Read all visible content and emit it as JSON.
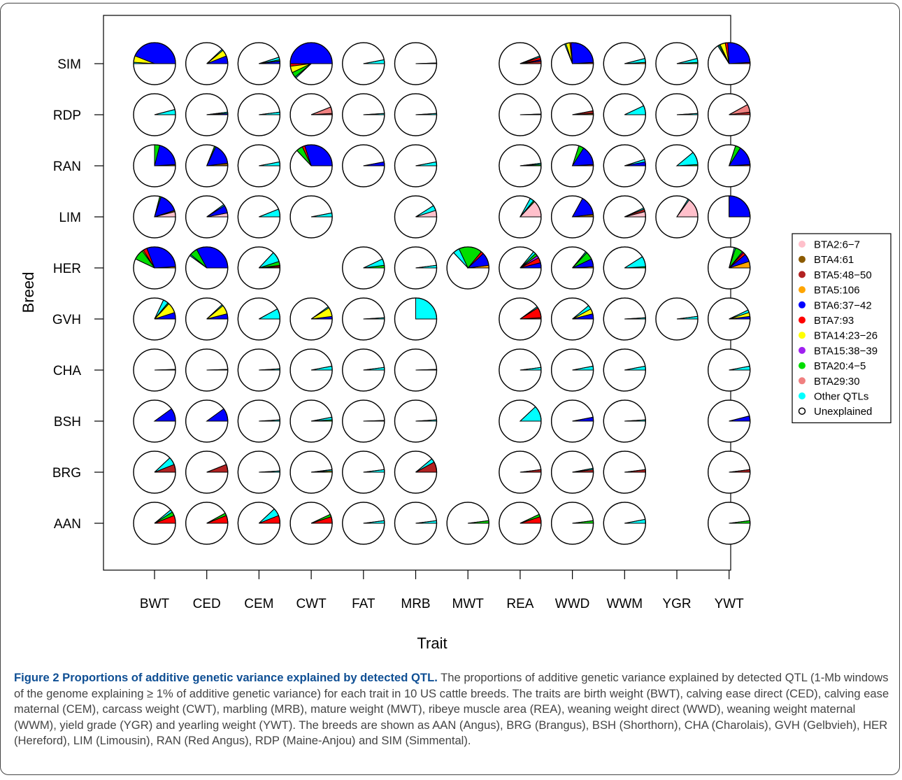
{
  "caption": {
    "title": "Figure 2 Proportions of additive genetic variance explained by detected QTL.",
    "text": " The proportions of additive genetic variance explained by detected QTL (1-Mb windows of the genome explaining ≥ 1% of additive genetic variance) for each trait in 10 US cattle breeds. The traits are birth weight (BWT), calving ease direct (CED), calving ease maternal (CEM), carcass weight (CWT), marbling (MRB), mature weight (MWT), ribeye muscle area (REA), weaning weight direct (WWD), weaning weight maternal (WWM), yield grade (YGR) and yearling weight (YWT). The breeds are shown as AAN (Angus), BRG (Brangus), BSH (Shorthorn), CHA (Charolais), GVH (Gelbvieh), HER (Hereford), LIM (Limousin), RAN (Red Angus), RDP (Maine-Anjou) and SIM (Simmental)."
  },
  "chart_data": {
    "type": "pie",
    "xlabel": "Trait",
    "ylabel": "Breed",
    "traits": [
      "BWT",
      "CED",
      "CEM",
      "CWT",
      "FAT",
      "MRB",
      "MWT",
      "REA",
      "WWD",
      "WWM",
      "YGR",
      "YWT"
    ],
    "breeds": [
      "SIM",
      "RDP",
      "RAN",
      "LIM",
      "HER",
      "GVH",
      "CHA",
      "BSH",
      "BRG",
      "AAN"
    ],
    "legend": {
      "position": "right",
      "entries": [
        {
          "key": "bta2",
          "label": "BTA2:6−7",
          "color": "#ffc0cb"
        },
        {
          "key": "bta4",
          "label": "BTA4:61",
          "color": "#8b5a00"
        },
        {
          "key": "bta5a",
          "label": "BTA5:48−50",
          "color": "#b22222"
        },
        {
          "key": "bta5b",
          "label": "BTA5:106",
          "color": "#ffa500"
        },
        {
          "key": "bta6",
          "label": "BTA6:37−42",
          "color": "#0000ff"
        },
        {
          "key": "bta7",
          "label": "BTA7:93",
          "color": "#ff0000"
        },
        {
          "key": "bta14",
          "label": "BTA14:23−26",
          "color": "#ffff00"
        },
        {
          "key": "bta15",
          "label": "BTA15:38−39",
          "color": "#a020f0"
        },
        {
          "key": "bta20",
          "label": "BTA20:4−5",
          "color": "#00dd00"
        },
        {
          "key": "bta29",
          "label": "BTA29:30",
          "color": "#f08080"
        },
        {
          "key": "other",
          "label": "Other QTLs",
          "color": "#00ffff"
        },
        {
          "key": "unexplained",
          "label": "Unexplained",
          "color": "#ffffff"
        }
      ]
    },
    "cells": {
      "SIM": {
        "BWT": {
          "bta6": 0.44,
          "bta14": 0.05,
          "other": 0.01
        },
        "CED": {
          "bta6": 0.06,
          "bta14": 0.05,
          "other": 0.01
        },
        "CEM": {
          "bta6": 0.02,
          "bta20": 0.01,
          "other": 0.02
        },
        "CWT": {
          "bta6": 0.5,
          "bta7": 0.02,
          "bta14": 0.05,
          "bta20": 0.04,
          "other": 0.01
        },
        "FAT": {
          "other": 0.03
        },
        "MRB": {
          "other": 0.005
        },
        "REA": {
          "bta6": 0.01,
          "bta7": 0.02,
          "bta5a": 0.02,
          "other": 0.01
        },
        "WWD": {
          "bta6": 0.25,
          "bta7": 0.01,
          "bta5a": 0.01,
          "bta14": 0.03,
          "other": 0.01
        },
        "WWM": {
          "bta5b": 0.01,
          "other": 0.03
        },
        "YGR": {
          "bta20": 0.01,
          "other": 0.03
        },
        "YWT": {
          "bta6": 0.25,
          "bta7": 0.02,
          "bta5a": 0.01,
          "bta14": 0.04,
          "bta20": 0.01,
          "other": 0.01
        }
      },
      "RDP": {
        "BWT": {
          "other": 0.04
        },
        "CED": {
          "bta6": 0.01,
          "other": 0.01
        },
        "CEM": {
          "other": 0.02
        },
        "CWT": {
          "bta29": 0.05,
          "bta5a": 0.01
        },
        "FAT": {
          "other": 0.01
        },
        "MRB": {
          "other": 0.01
        },
        "REA": {
          "other": 0.005
        },
        "WWD": {
          "bta5a": 0.02,
          "bta4": 0.01
        },
        "WWM": {
          "other": 0.07
        },
        "YGR": {
          "other": 0.01
        },
        "YWT": {
          "bta29": 0.06,
          "bta5a": 0.02
        }
      },
      "RAN": {
        "BWT": {
          "bta6": 0.2,
          "bta20": 0.04,
          "bta4": 0.01
        },
        "CED": {
          "bta6": 0.16,
          "bta4": 0.02,
          "bta20": 0.01
        },
        "CEM": {
          "other": 0.03
        },
        "CWT": {
          "bta6": 0.3,
          "bta20": 0.05,
          "bta7": 0.02
        },
        "FAT": {
          "bta6": 0.03
        },
        "MRB": {
          "other": 0.03
        },
        "REA": {
          "bta20": 0.01,
          "other": 0.01
        },
        "WWD": {
          "bta6": 0.15,
          "bta20": 0.04,
          "bta5a": 0.01
        },
        "WWM": {
          "bta6": 0.03,
          "other": 0.02
        },
        "YGR": {
          "other": 0.1,
          "bta20": 0.01
        },
        "YWT": {
          "bta6": 0.15,
          "bta20": 0.04,
          "bta5a": 0.01
        }
      },
      "LIM": {
        "BWT": {
          "bta2": 0.04,
          "bta6": 0.15,
          "bta20": 0.01,
          "bta4": 0.01
        },
        "CED": {
          "bta2": 0.03,
          "bta6": 0.06,
          "other": 0.01
        },
        "CEM": {
          "other": 0.06
        },
        "CWT": {
          "other": 0.03
        },
        "MRB": {
          "bta2": 0.05,
          "other": 0.04
        },
        "REA": {
          "bta2": 0.13,
          "other": 0.03,
          "bta20": 0.01
        },
        "WWD": {
          "bta6": 0.15,
          "bta4": 0.02
        },
        "WWM": {
          "bta2": 0.04,
          "bta5a": 0.02,
          "other": 0.01
        },
        "YGR": {
          "bta2": 0.15,
          "other": 0.01
        },
        "YWT": {
          "bta6": 0.25
        }
      },
      "HER": {
        "BWT": {
          "bta6": 0.3,
          "bta7": 0.03,
          "bta20": 0.08,
          "bta14": 0.01,
          "bta5b": 0.01
        },
        "CED": {
          "bta6": 0.33,
          "bta20": 0.06,
          "other": 0.01
        },
        "CEM": {
          "other": 0.08,
          "bta20": 0.03,
          "bta5a": 0.01,
          "bta7": 0.01
        },
        "FAT": {
          "other": 0.05,
          "bta20": 0.02
        },
        "MRB": {
          "other": 0.02
        },
        "MWT": {
          "bta5b": 0.02,
          "bta6": 0.1,
          "bta7": 0.02,
          "bta20": 0.18,
          "other": 0.05
        },
        "REA": {
          "bta6": 0.04,
          "bta7": 0.04,
          "bta15": 0.02,
          "bta20": 0.02,
          "other": 0.02
        },
        "WWD": {
          "bta6": 0.06,
          "bta20": 0.06,
          "bta5b": 0.01,
          "other": 0.01
        },
        "WWM": {
          "other": 0.08,
          "bta20": 0.01
        },
        "YWT": {
          "bta5b": 0.05,
          "bta6": 0.06,
          "bta15": 0.01,
          "bta7": 0.02,
          "bta20": 0.06,
          "other": 0.01
        }
      },
      "GVH": {
        "BWT": {
          "bta6": 0.05,
          "bta14": 0.08,
          "bta20": 0.01,
          "other": 0.04
        },
        "CED": {
          "bta6": 0.04,
          "bta14": 0.07,
          "other": 0.01
        },
        "CEM": {
          "other": 0.08
        },
        "CWT": {
          "bta6": 0.02,
          "bta14": 0.07,
          "other": 0.01
        },
        "FAT": {
          "other": 0.01
        },
        "MRB": {
          "other": 0.25
        },
        "REA": {
          "bta7": 0.08,
          "bta5a": 0.01,
          "other": 0.01
        },
        "WWD": {
          "bta6": 0.04,
          "bta14": 0.04,
          "other": 0.03
        },
        "WWM": {
          "other": 0.01
        },
        "YGR": {
          "other": 0.02
        },
        "YWT": {
          "bta6": 0.02,
          "bta14": 0.03,
          "other": 0.02
        }
      },
      "CHA": {
        "BWT": {
          "other": 0.005
        },
        "CED": {
          "other": 0.005
        },
        "CEM": {
          "other": 0.01
        },
        "CWT": {
          "other": 0.03
        },
        "FAT": {
          "other": 0.02
        },
        "MRB": {
          "other": 0.005
        },
        "REA": {
          "other": 0.02
        },
        "WWD": {
          "other": 0.03
        },
        "WWM": {
          "other": 0.03
        },
        "YWT": {
          "other": 0.03
        }
      },
      "BSH": {
        "BWT": {
          "bta6": 0.1
        },
        "CED": {
          "bta6": 0.1
        },
        "CEM": {
          "other": 0.01
        },
        "CWT": {
          "other": 0.02,
          "bta20": 0.01
        },
        "FAT": {
          "other": 0.005
        },
        "MRB": {
          "other": 0.01
        },
        "REA": {
          "other": 0.12
        },
        "WWD": {
          "bta6": 0.03
        },
        "WWM": {
          "other": 0.01
        },
        "YWT": {
          "bta6": 0.04
        }
      },
      "BRG": {
        "BWT": {
          "bta5a": 0.06,
          "other": 0.06
        },
        "CED": {
          "bta5a": 0.06
        },
        "CEM": {
          "other": 0.01
        },
        "CWT": {
          "bta14": 0.01,
          "other": 0.01
        },
        "FAT": {
          "other": 0.02
        },
        "MRB": {
          "bta5a": 0.08,
          "other": 0.03
        },
        "REA": {
          "bta5a": 0.02
        },
        "WWD": {
          "bta5a": 0.02,
          "other": 0.01
        },
        "WWM": {
          "bta5a": 0.02
        },
        "YWT": {
          "bta5a": 0.02
        }
      },
      "AAN": {
        "BWT": {
          "bta7": 0.06,
          "bta20": 0.03,
          "other": 0.02
        },
        "CED": {
          "bta7": 0.06,
          "bta20": 0.02
        },
        "CEM": {
          "bta7": 0.06,
          "other": 0.06
        },
        "CWT": {
          "bta7": 0.05,
          "bta20": 0.02
        },
        "FAT": {
          "other": 0.02
        },
        "MRB": {
          "other": 0.02
        },
        "MWT": {
          "bta20": 0.02
        },
        "REA": {
          "bta7": 0.05,
          "bta20": 0.02
        },
        "WWD": {
          "bta20": 0.02
        },
        "WWM": {
          "other": 0.03
        },
        "YWT": {
          "bta20": 0.02
        }
      }
    }
  }
}
